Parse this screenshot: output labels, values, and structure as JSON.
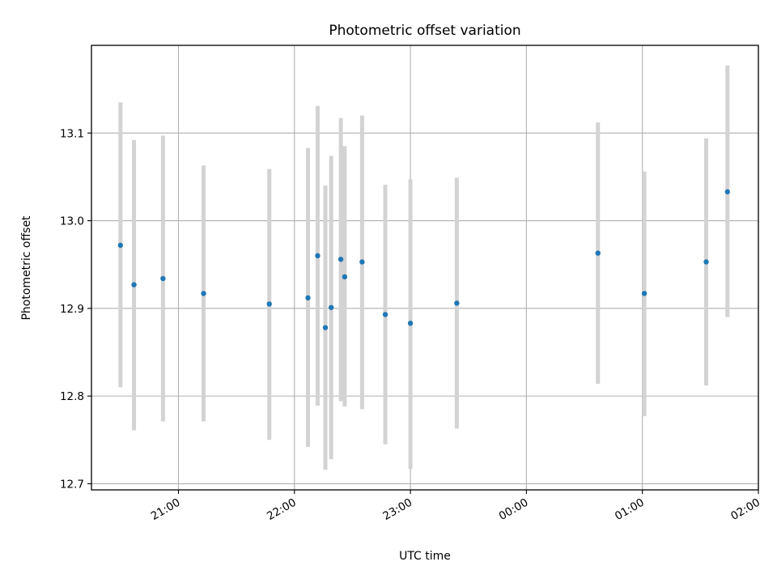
{
  "chart_data": {
    "type": "scatter",
    "title": "Photometric offset variation",
    "xlabel": "UTC time",
    "ylabel": "Photometric offset",
    "x_ticks": [
      "21:00",
      "22:00",
      "23:00",
      "00:00",
      "01:00",
      "02:00"
    ],
    "y_ticks": [
      "12.7",
      "12.8",
      "12.9",
      "13.0",
      "13.1"
    ],
    "xlim": [
      "20:15",
      "02:00"
    ],
    "ylim": [
      12.693,
      13.2
    ],
    "grid": true,
    "colors": {
      "point": "#1f77b4",
      "errorbar": "#d3d3d3",
      "grid": "#b0b0b0"
    },
    "points": [
      {
        "x": "20:30",
        "y": 12.972,
        "ylo": 12.81,
        "yhi": 13.135
      },
      {
        "x": "20:37",
        "y": 12.927,
        "ylo": 12.761,
        "yhi": 13.092
      },
      {
        "x": "20:52",
        "y": 12.934,
        "ylo": 12.771,
        "yhi": 13.097
      },
      {
        "x": "21:13",
        "y": 12.917,
        "ylo": 12.771,
        "yhi": 13.063
      },
      {
        "x": "21:47",
        "y": 12.905,
        "ylo": 12.75,
        "yhi": 13.059
      },
      {
        "x": "22:07",
        "y": 12.912,
        "ylo": 12.742,
        "yhi": 13.083
      },
      {
        "x": "22:12",
        "y": 12.96,
        "ylo": 12.789,
        "yhi": 13.131
      },
      {
        "x": "22:16",
        "y": 12.878,
        "ylo": 12.716,
        "yhi": 13.04
      },
      {
        "x": "22:19",
        "y": 12.901,
        "ylo": 12.728,
        "yhi": 13.074
      },
      {
        "x": "22:24",
        "y": 12.956,
        "ylo": 12.794,
        "yhi": 13.117
      },
      {
        "x": "22:26",
        "y": 12.936,
        "ylo": 12.788,
        "yhi": 13.085
      },
      {
        "x": "22:35",
        "y": 12.953,
        "ylo": 12.785,
        "yhi": 13.12
      },
      {
        "x": "22:47",
        "y": 12.893,
        "ylo": 12.745,
        "yhi": 13.041
      },
      {
        "x": "23:00",
        "y": 12.883,
        "ylo": 12.717,
        "yhi": 13.047
      },
      {
        "x": "23:24",
        "y": 12.906,
        "ylo": 12.763,
        "yhi": 13.049
      },
      {
        "x": "00:37",
        "y": 12.963,
        "ylo": 12.814,
        "yhi": 13.112
      },
      {
        "x": "01:01",
        "y": 12.917,
        "ylo": 12.777,
        "yhi": 13.056
      },
      {
        "x": "01:33",
        "y": 12.953,
        "ylo": 12.812,
        "yhi": 13.094
      },
      {
        "x": "01:44",
        "y": 13.033,
        "ylo": 12.89,
        "yhi": 13.177
      }
    ]
  }
}
